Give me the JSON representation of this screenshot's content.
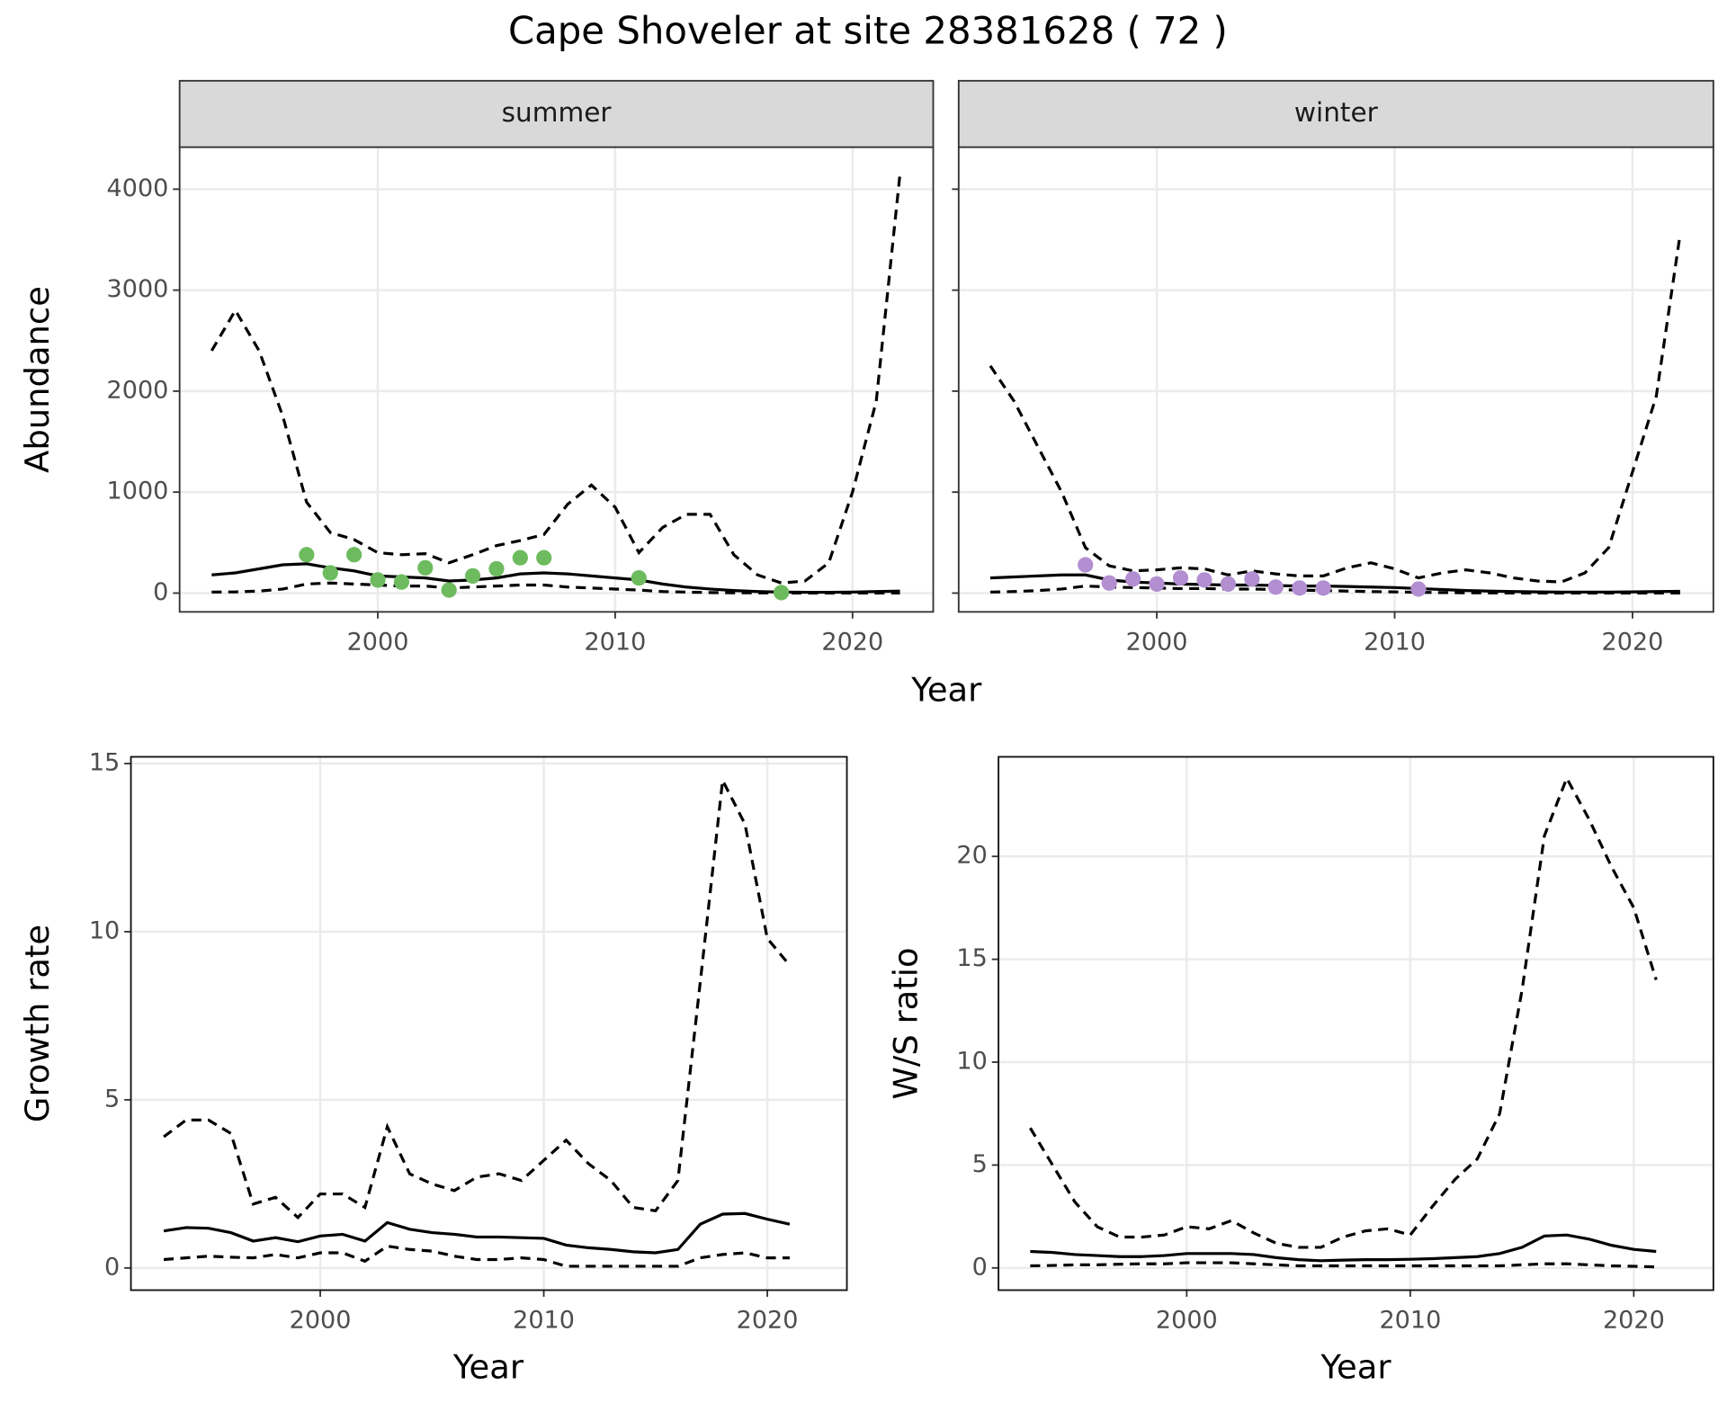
{
  "title": "Cape Shoveler at site 28381628 ( 72 )",
  "chart_data": [
    {
      "type": "line",
      "facet": "summer",
      "ylabel": "Abundance",
      "xlabel": "Year",
      "x": [
        1993,
        1994,
        1995,
        1996,
        1997,
        1998,
        1999,
        2000,
        2001,
        2002,
        2003,
        2004,
        2005,
        2006,
        2007,
        2008,
        2009,
        2010,
        2011,
        2012,
        2013,
        2014,
        2015,
        2016,
        2017,
        2018,
        2019,
        2020,
        2021,
        2022
      ],
      "xlim": [
        1991.65,
        2023.4
      ],
      "xticks": [
        2000,
        2010,
        2020
      ],
      "ylim": [
        -186,
        4416
      ],
      "yticks": [
        0,
        1000,
        2000,
        3000,
        4000
      ],
      "grid": true,
      "show_ytick_labels": true,
      "series": [
        {
          "style": "dashed",
          "color": "#000000",
          "values": [
            2400,
            2800,
            2400,
            1750,
            900,
            600,
            530,
            400,
            380,
            390,
            300,
            380,
            470,
            520,
            580,
            880,
            1070,
            850,
            400,
            650,
            780,
            780,
            380,
            180,
            100,
            120,
            300,
            1000,
            1900,
            4150
          ]
        },
        {
          "style": "solid",
          "color": "#000000",
          "values": [
            180,
            200,
            240,
            280,
            290,
            250,
            220,
            170,
            160,
            150,
            120,
            130,
            150,
            190,
            200,
            190,
            170,
            150,
            130,
            90,
            60,
            40,
            25,
            15,
            10,
            8,
            8,
            10,
            15,
            20
          ]
        },
        {
          "style": "dashed",
          "color": "#000000",
          "values": [
            10,
            12,
            20,
            40,
            90,
            100,
            90,
            80,
            70,
            70,
            50,
            60,
            70,
            80,
            80,
            60,
            50,
            40,
            30,
            15,
            10,
            5,
            3,
            2,
            1,
            1,
            1,
            1,
            1,
            1
          ]
        },
        {
          "style": "points",
          "color": "#6dbb5e",
          "x": [
            1997,
            1998,
            1999,
            2000,
            2001,
            2002,
            2003,
            2004,
            2005,
            2006,
            2007,
            2011,
            2017
          ],
          "values": [
            380,
            200,
            380,
            130,
            110,
            250,
            30,
            170,
            240,
            350,
            350,
            150,
            5
          ]
        }
      ]
    },
    {
      "type": "line",
      "facet": "winter",
      "x": [
        1993,
        1994,
        1995,
        1996,
        1997,
        1998,
        1999,
        2000,
        2001,
        2002,
        2003,
        2004,
        2005,
        2006,
        2007,
        2008,
        2009,
        2010,
        2011,
        2012,
        2013,
        2014,
        2015,
        2016,
        2017,
        2018,
        2019,
        2020,
        2021,
        2022
      ],
      "xlim": [
        1991.67,
        2023.4
      ],
      "xticks": [
        2000,
        2010,
        2020
      ],
      "ylim": [
        -186,
        4416
      ],
      "yticks": [
        0,
        1000,
        2000,
        3000,
        4000
      ],
      "grid": true,
      "show_ytick_labels": false,
      "series": [
        {
          "style": "dashed",
          "color": "#000000",
          "values": [
            2250,
            1900,
            1450,
            1000,
            450,
            270,
            220,
            230,
            250,
            240,
            180,
            220,
            190,
            170,
            170,
            250,
            300,
            240,
            150,
            200,
            230,
            200,
            150,
            120,
            110,
            200,
            450,
            1200,
            1950,
            3550
          ]
        },
        {
          "style": "solid",
          "color": "#000000",
          "values": [
            150,
            160,
            170,
            180,
            180,
            130,
            110,
            100,
            90,
            85,
            80,
            80,
            75,
            70,
            70,
            65,
            60,
            55,
            45,
            35,
            25,
            20,
            15,
            12,
            10,
            10,
            10,
            12,
            15,
            18
          ]
        },
        {
          "style": "dashed",
          "color": "#000000",
          "values": [
            10,
            15,
            25,
            40,
            70,
            60,
            55,
            50,
            45,
            45,
            40,
            40,
            35,
            30,
            25,
            20,
            15,
            12,
            8,
            5,
            3,
            2,
            1,
            1,
            1,
            1,
            1,
            1,
            1,
            1
          ]
        },
        {
          "style": "points",
          "color": "#b38ed0",
          "x": [
            1997,
            1998,
            1999,
            2000,
            2001,
            2002,
            2003,
            2004,
            2005,
            2006,
            2007,
            2011
          ],
          "values": [
            280,
            100,
            140,
            90,
            150,
            130,
            90,
            140,
            60,
            50,
            50,
            40
          ]
        }
      ]
    },
    {
      "type": "line",
      "ylabel": "Growth rate",
      "xlabel": "Year",
      "x": [
        1993,
        1994,
        1995,
        1996,
        1997,
        1998,
        1999,
        2000,
        2001,
        2002,
        2003,
        2004,
        2005,
        2006,
        2007,
        2008,
        2009,
        2010,
        2011,
        2012,
        2013,
        2014,
        2015,
        2016,
        2017,
        2018,
        2019,
        2020,
        2021
      ],
      "xlim": [
        1991.53,
        2023.56
      ],
      "xticks": [
        2000,
        2010,
        2020
      ],
      "ylim": [
        -0.66,
        15.2
      ],
      "yticks": [
        0,
        5,
        10,
        15
      ],
      "grid": true,
      "show_ytick_labels": true,
      "series": [
        {
          "style": "dashed",
          "color": "#000000",
          "values": [
            3.9,
            4.4,
            4.4,
            4.0,
            1.9,
            2.1,
            1.5,
            2.2,
            2.2,
            1.8,
            4.2,
            2.8,
            2.5,
            2.3,
            2.7,
            2.8,
            2.6,
            3.2,
            3.8,
            3.1,
            2.6,
            1.8,
            1.7,
            2.6,
            8.5,
            14.5,
            13.2,
            9.8,
            9.0
          ]
        },
        {
          "style": "solid",
          "color": "#000000",
          "values": [
            1.1,
            1.2,
            1.18,
            1.05,
            0.8,
            0.9,
            0.78,
            0.95,
            1.0,
            0.8,
            1.35,
            1.15,
            1.05,
            1.0,
            0.92,
            0.92,
            0.9,
            0.88,
            0.68,
            0.6,
            0.55,
            0.48,
            0.45,
            0.55,
            1.3,
            1.6,
            1.62,
            1.45,
            1.3
          ]
        },
        {
          "style": "dashed",
          "color": "#000000",
          "values": [
            0.25,
            0.3,
            0.35,
            0.32,
            0.3,
            0.4,
            0.3,
            0.45,
            0.45,
            0.2,
            0.65,
            0.55,
            0.5,
            0.35,
            0.25,
            0.25,
            0.3,
            0.25,
            0.05,
            0.05,
            0.05,
            0.05,
            0.05,
            0.05,
            0.3,
            0.4,
            0.45,
            0.3,
            0.3
          ]
        }
      ]
    },
    {
      "type": "line",
      "ylabel": "W/S ratio",
      "xlabel": "Year",
      "x": [
        1993,
        1994,
        1995,
        1996,
        1997,
        1998,
        1999,
        2000,
        2001,
        2002,
        2003,
        2004,
        2005,
        2006,
        2007,
        2008,
        2009,
        2010,
        2011,
        2012,
        2013,
        2014,
        2015,
        2016,
        2017,
        2018,
        2019,
        2020,
        2021
      ],
      "xlim": [
        1991.58,
        2023.56
      ],
      "xticks": [
        2000,
        2010,
        2020
      ],
      "ylim": [
        -1.08,
        24.84
      ],
      "yticks": [
        0,
        5,
        10,
        15,
        20
      ],
      "grid": true,
      "show_ytick_labels": true,
      "series": [
        {
          "style": "dashed",
          "color": "#000000",
          "values": [
            6.8,
            5.0,
            3.2,
            2.0,
            1.5,
            1.5,
            1.6,
            2.0,
            1.9,
            2.3,
            1.7,
            1.2,
            1.0,
            1.0,
            1.5,
            1.8,
            1.9,
            1.6,
            3.0,
            4.3,
            5.3,
            7.5,
            13.5,
            21,
            23.8,
            21.8,
            19.5,
            17.5,
            14.0
          ]
        },
        {
          "style": "solid",
          "color": "#000000",
          "values": [
            0.8,
            0.75,
            0.65,
            0.6,
            0.55,
            0.55,
            0.6,
            0.7,
            0.7,
            0.7,
            0.65,
            0.5,
            0.4,
            0.35,
            0.38,
            0.4,
            0.4,
            0.42,
            0.45,
            0.5,
            0.55,
            0.7,
            1.0,
            1.55,
            1.6,
            1.4,
            1.1,
            0.9,
            0.8
          ]
        },
        {
          "style": "dashed",
          "color": "#000000",
          "values": [
            0.1,
            0.12,
            0.15,
            0.15,
            0.18,
            0.2,
            0.2,
            0.25,
            0.25,
            0.25,
            0.2,
            0.15,
            0.1,
            0.1,
            0.1,
            0.1,
            0.1,
            0.1,
            0.1,
            0.1,
            0.1,
            0.1,
            0.15,
            0.2,
            0.2,
            0.15,
            0.1,
            0.08,
            0.05
          ]
        }
      ]
    }
  ]
}
